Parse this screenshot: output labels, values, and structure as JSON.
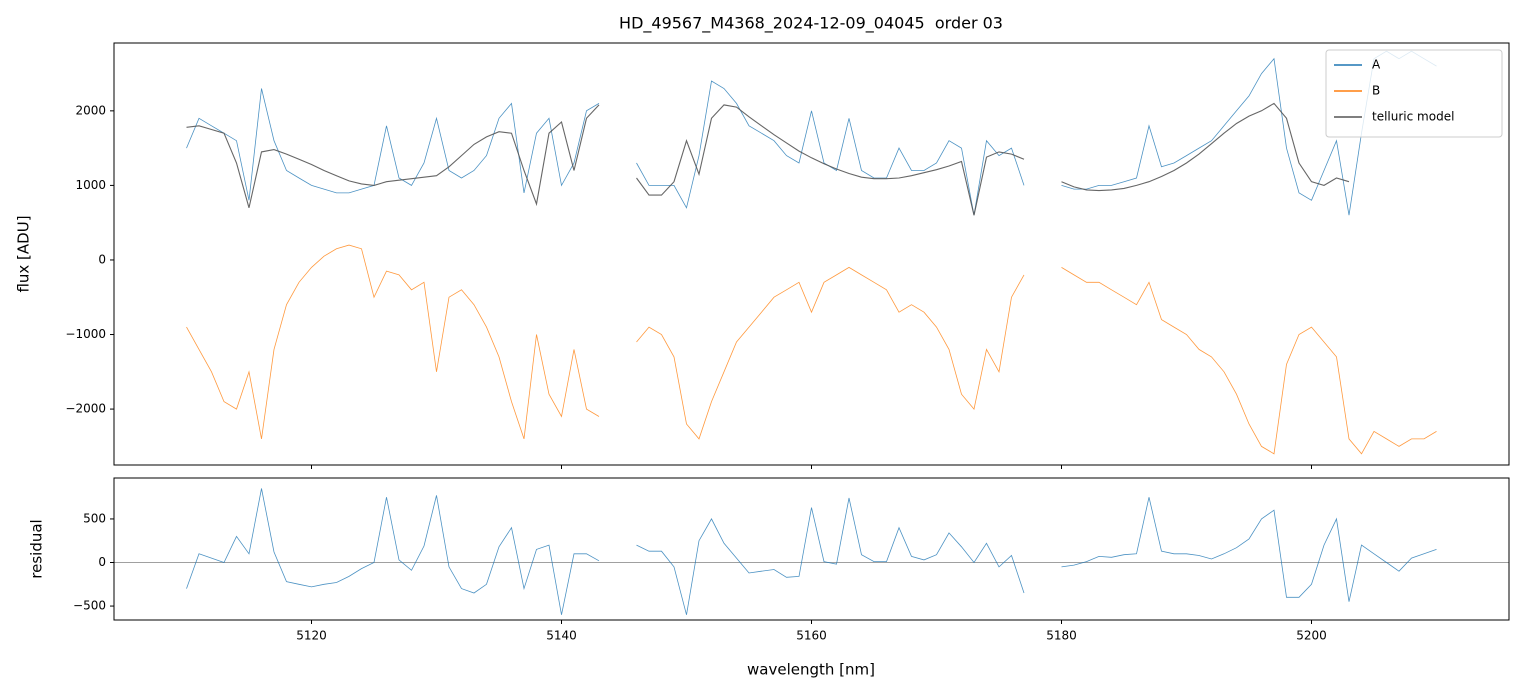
{
  "chart_data": [
    {
      "type": "line",
      "title": "HD_49567_M4368_2024-12-09_04045  order 03",
      "ylabel": "flux [ADU]",
      "x": [
        5110,
        5111,
        5112,
        5113,
        5114,
        5115,
        5116,
        5117,
        5118,
        5119,
        5120,
        5121,
        5122,
        5123,
        5124,
        5125,
        5126,
        5127,
        5128,
        5129,
        5130,
        5131,
        5132,
        5133,
        5134,
        5135,
        5136,
        5137,
        5138,
        5139,
        5140,
        5141,
        5142,
        5143,
        5144,
        5145,
        5146,
        5147,
        5148,
        5149,
        5150,
        5151,
        5152,
        5153,
        5154,
        5155,
        5156,
        5157,
        5158,
        5159,
        5160,
        5161,
        5162,
        5163,
        5164,
        5165,
        5166,
        5167,
        5168,
        5169,
        5170,
        5171,
        5172,
        5173,
        5174,
        5175,
        5176,
        5177,
        5178,
        5179,
        5180,
        5181,
        5182,
        5183,
        5184,
        5185,
        5186,
        5187,
        5188,
        5189,
        5190,
        5191,
        5192,
        5193,
        5194,
        5195,
        5196,
        5197,
        5198,
        5199,
        5200,
        5201,
        5202,
        5203,
        5204,
        5205,
        5206,
        5207,
        5208,
        5209,
        5210
      ],
      "series": [
        {
          "name": "A",
          "color": "#1f77b4",
          "values": [
            1500,
            1900,
            1800,
            1700,
            1600,
            800,
            2300,
            1600,
            1200,
            1100,
            1000,
            950,
            900,
            900,
            950,
            1000,
            1800,
            1100,
            1000,
            1300,
            1900,
            1200,
            1100,
            1200,
            1400,
            1900,
            2100,
            900,
            1700,
            1900,
            1000,
            1300,
            2000,
            2100,
            null,
            null,
            1300,
            1000,
            1000,
            1000,
            700,
            1400,
            2400,
            2300,
            2100,
            1800,
            1700,
            1600,
            1400,
            1300,
            2000,
            1300,
            1200,
            1900,
            1200,
            1100,
            1100,
            1500,
            1200,
            1200,
            1300,
            1600,
            1500,
            600,
            1600,
            1400,
            1500,
            1000,
            null,
            null,
            1000,
            950,
            950,
            1000,
            1000,
            1050,
            1100,
            1800,
            1250,
            1300,
            1400,
            1500,
            1600,
            1800,
            2000,
            2200,
            2500,
            2700,
            1500,
            900,
            800,
            1200,
            1600,
            600,
            1700,
            2700,
            2800,
            2700,
            2800,
            2700,
            2600
          ]
        },
        {
          "name": "B",
          "color": "#ff7f0e",
          "values": [
            -900,
            -1200,
            -1500,
            -1900,
            -2000,
            -1500,
            -2400,
            -1200,
            -600,
            -300,
            -100,
            50,
            150,
            200,
            150,
            -500,
            -150,
            -200,
            -400,
            -300,
            -1500,
            -500,
            -400,
            -600,
            -900,
            -1300,
            -1900,
            -2400,
            -1000,
            -1800,
            -2100,
            -1200,
            -2000,
            -2100,
            null,
            null,
            -1100,
            -900,
            -1000,
            -1300,
            -2200,
            -2400,
            -1900,
            -1500,
            -1100,
            -900,
            -700,
            -500,
            -400,
            -300,
            -700,
            -300,
            -200,
            -100,
            -200,
            -300,
            -400,
            -700,
            -600,
            -700,
            -900,
            -1200,
            -1800,
            -2000,
            -1200,
            -1500,
            -500,
            -200,
            null,
            null,
            -100,
            -200,
            -300,
            -300,
            -400,
            -500,
            -600,
            -300,
            -800,
            -900,
            -1000,
            -1200,
            -1300,
            -1500,
            -1800,
            -2200,
            -2500,
            -2600,
            -1400,
            -1000,
            -900,
            -1100,
            -1300,
            -2400,
            -2600,
            -2300,
            -2400,
            -2500,
            -2400,
            -2400,
            -2300
          ]
        },
        {
          "name": "telluric model",
          "color": "#555555",
          "values": [
            1780,
            1800,
            1750,
            1700,
            1300,
            700,
            1450,
            1480,
            1420,
            1350,
            1280,
            1200,
            1130,
            1060,
            1020,
            1000,
            1050,
            1070,
            1090,
            1110,
            1130,
            1250,
            1400,
            1550,
            1650,
            1720,
            1700,
            1200,
            750,
            1700,
            1850,
            1200,
            1900,
            2080,
            null,
            null,
            1100,
            870,
            870,
            1050,
            1600,
            1150,
            1900,
            2080,
            2050,
            1920,
            1800,
            1680,
            1570,
            1460,
            1370,
            1290,
            1220,
            1160,
            1110,
            1090,
            1090,
            1100,
            1130,
            1170,
            1210,
            1260,
            1320,
            600,
            1380,
            1450,
            1420,
            1350,
            null,
            null,
            1050,
            980,
            940,
            930,
            940,
            960,
            1000,
            1050,
            1120,
            1200,
            1300,
            1420,
            1560,
            1700,
            1830,
            1930,
            2000,
            2100,
            1900,
            1300,
            1050,
            1000,
            1100,
            1050,
            null,
            null,
            null,
            null,
            null,
            null,
            null
          ]
        }
      ],
      "xlim": [
        5104.2,
        5215.8
      ],
      "xticks": [
        5120,
        5140,
        5160,
        5180,
        5200
      ],
      "ylim": [
        -2750,
        2910
      ],
      "yticks": [
        {
          "value": -2000,
          "label": "−2000"
        },
        {
          "value": -1000,
          "label": "−1000"
        },
        0,
        1000,
        2000
      ],
      "legend": "upper right"
    },
    {
      "type": "line",
      "xlabel": "wavelength [nm]",
      "ylabel": "residual",
      "x": [
        5110,
        5111,
        5112,
        5113,
        5114,
        5115,
        5116,
        5117,
        5118,
        5119,
        5120,
        5121,
        5122,
        5123,
        5124,
        5125,
        5126,
        5127,
        5128,
        5129,
        5130,
        5131,
        5132,
        5133,
        5134,
        5135,
        5136,
        5137,
        5138,
        5139,
        5140,
        5141,
        5142,
        5143,
        5144,
        5145,
        5146,
        5147,
        5148,
        5149,
        5150,
        5151,
        5152,
        5153,
        5154,
        5155,
        5156,
        5157,
        5158,
        5159,
        5160,
        5161,
        5162,
        5163,
        5164,
        5165,
        5166,
        5167,
        5168,
        5169,
        5170,
        5171,
        5172,
        5173,
        5174,
        5175,
        5176,
        5177,
        5178,
        5179,
        5180,
        5181,
        5182,
        5183,
        5184,
        5185,
        5186,
        5187,
        5188,
        5189,
        5190,
        5191,
        5192,
        5193,
        5194,
        5195,
        5196,
        5197,
        5198,
        5199,
        5200,
        5201,
        5202,
        5203,
        5204,
        5205,
        5206,
        5207,
        5208,
        5209,
        5210
      ],
      "values": [
        -300,
        100,
        50,
        0,
        300,
        100,
        850,
        120,
        -220,
        -250,
        -280,
        -250,
        -230,
        -160,
        -70,
        0,
        750,
        30,
        -90,
        190,
        770,
        -50,
        -300,
        -350,
        -250,
        180,
        400,
        -300,
        150,
        200,
        -600,
        100,
        100,
        20,
        null,
        null,
        200,
        130,
        130,
        -50,
        -600,
        250,
        500,
        220,
        50,
        -120,
        -100,
        -80,
        -170,
        -160,
        630,
        10,
        -20,
        740,
        90,
        10,
        10,
        400,
        70,
        30,
        90,
        340,
        180,
        0,
        220,
        -50,
        80,
        -350,
        null,
        null,
        -50,
        -30,
        10,
        70,
        60,
        90,
        100,
        750,
        130,
        100,
        100,
        80,
        40,
        100,
        170,
        270,
        500,
        600,
        -400,
        -400,
        -250,
        200,
        500,
        -450,
        200,
        100,
        0,
        -100,
        50,
        100,
        150
      ],
      "color": "#1f77b4",
      "xlim": [
        5104.2,
        5215.8
      ],
      "xticks": [
        5120,
        5140,
        5160,
        5180,
        5200
      ],
      "ylim": [
        -660,
        970
      ],
      "yticks": [
        {
          "value": -500,
          "label": "−500"
        },
        0,
        500
      ],
      "zero_line": true
    }
  ]
}
